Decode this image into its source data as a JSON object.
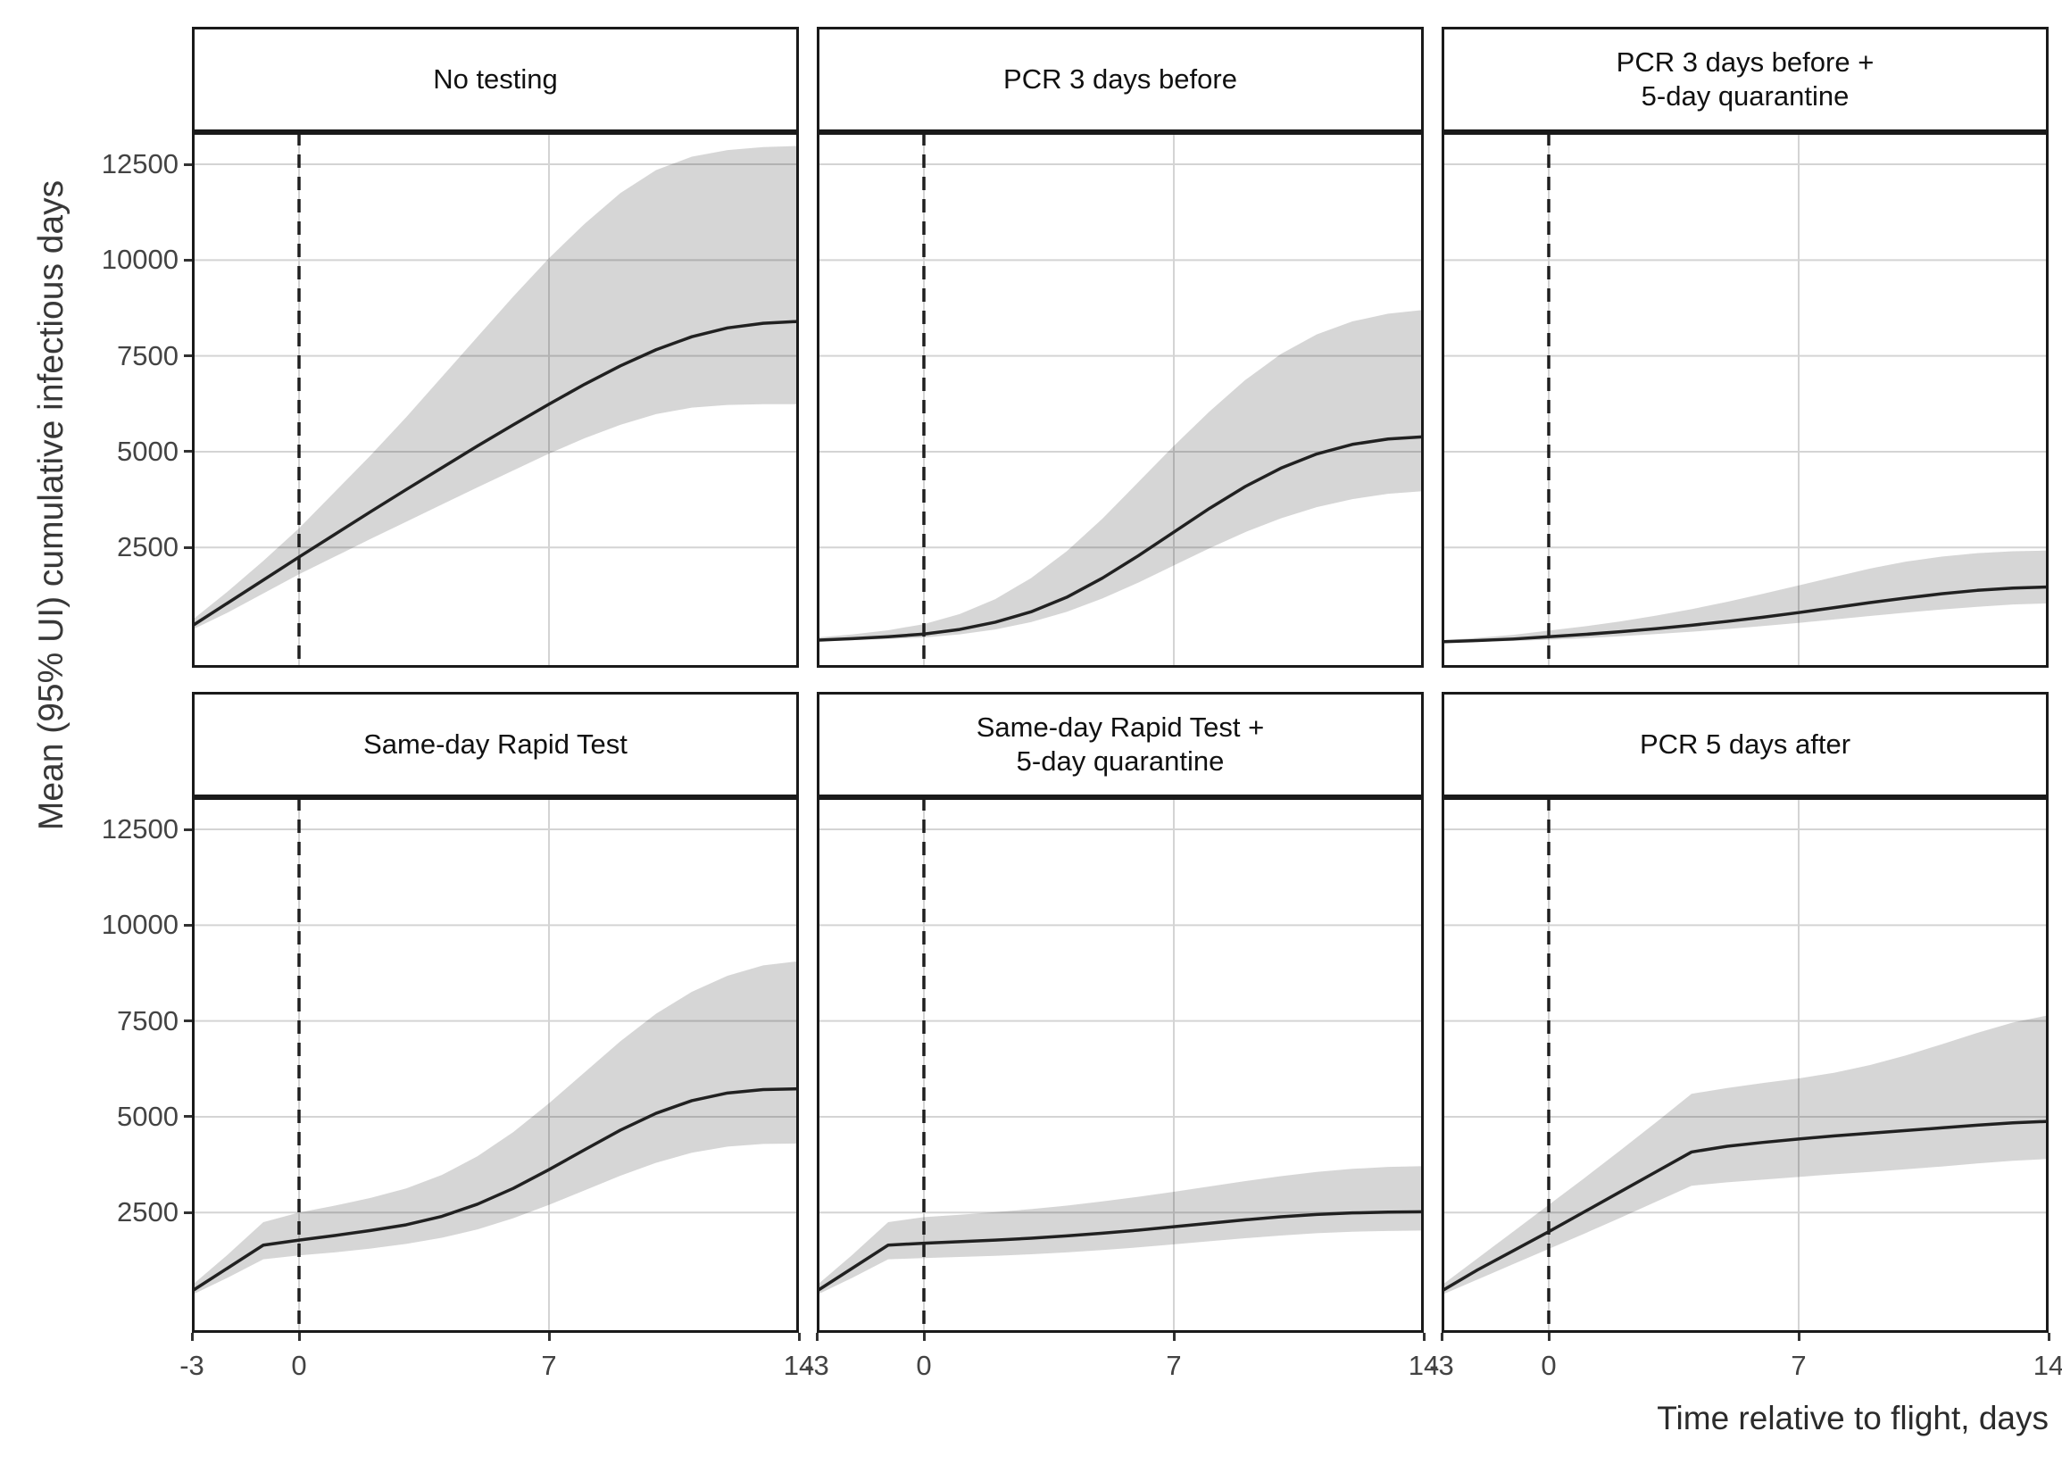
{
  "chart_data": {
    "type": "line",
    "description": "Faceted line chart with 95% uncertainty ribbons; one facet per testing/quarantine strategy",
    "ylabel": "Mean (95% UI) cumulative infectious days",
    "xlabel": "Time relative to flight, days",
    "x_ticks": [
      -3,
      0,
      7,
      14
    ],
    "y_ticks": [
      2500,
      5000,
      7500,
      10000,
      12500
    ],
    "xlim": [
      -3,
      14
    ],
    "ylim": [
      -640,
      13340
    ],
    "vline_x": 0,
    "grid": true,
    "legend": "none",
    "colors": {
      "panel_bg": "#ffffff",
      "grid": "#d4d4d4",
      "ribbon": "rgba(0,0,0,0.16)",
      "line": "#212121",
      "vline": "#1f1f1f",
      "border": "#1a1a1a"
    },
    "panels": [
      {
        "title": "No testing",
        "x": [
          -3,
          -2,
          -1,
          0,
          1,
          2,
          3,
          4,
          5,
          6,
          7,
          8,
          9,
          10,
          11,
          12,
          13,
          14
        ],
        "mean": [
          450,
          1050,
          1650,
          2250,
          2840,
          3430,
          4010,
          4580,
          5150,
          5700,
          6240,
          6760,
          7240,
          7660,
          8000,
          8230,
          8350,
          8400
        ],
        "lower": [
          350,
          800,
          1300,
          1800,
          2260,
          2720,
          3170,
          3620,
          4070,
          4510,
          4950,
          5350,
          5700,
          5980,
          6150,
          6220,
          6240,
          6240
        ],
        "upper": [
          600,
          1350,
          2150,
          3000,
          3950,
          4900,
          5900,
          6950,
          8000,
          9050,
          10050,
          10950,
          11750,
          12350,
          12700,
          12870,
          12950,
          12980
        ]
      },
      {
        "title": "PCR 3 days before",
        "x": [
          -3,
          -2,
          -1,
          0,
          1,
          2,
          3,
          4,
          5,
          6,
          7,
          8,
          9,
          10,
          11,
          12,
          13,
          14
        ],
        "mean": [
          80,
          120,
          170,
          240,
          360,
          550,
          820,
          1200,
          1700,
          2280,
          2900,
          3520,
          4090,
          4570,
          4940,
          5190,
          5330,
          5390
        ],
        "lower": [
          50,
          80,
          110,
          150,
          230,
          360,
          550,
          820,
          1170,
          1580,
          2030,
          2480,
          2900,
          3260,
          3550,
          3760,
          3900,
          3970
        ],
        "upper": [
          150,
          230,
          340,
          500,
          760,
          1150,
          1700,
          2400,
          3250,
          4200,
          5150,
          6050,
          6870,
          7550,
          8060,
          8400,
          8600,
          8700
        ]
      },
      {
        "title": "PCR 3 days before +\n5-day quarantine",
        "x": [
          -3,
          -2,
          -1,
          0,
          1,
          2,
          3,
          4,
          5,
          6,
          7,
          8,
          9,
          10,
          11,
          12,
          13,
          14
        ],
        "mean": [
          40,
          70,
          110,
          170,
          230,
          300,
          380,
          470,
          570,
          680,
          800,
          930,
          1060,
          1180,
          1290,
          1380,
          1440,
          1470
        ],
        "lower": [
          20,
          40,
          60,
          90,
          130,
          180,
          240,
          300,
          370,
          450,
          530,
          620,
          710,
          800,
          880,
          950,
          1010,
          1040
        ],
        "upper": [
          80,
          140,
          220,
          330,
          440,
          570,
          720,
          890,
          1080,
          1290,
          1510,
          1730,
          1950,
          2130,
          2260,
          2350,
          2400,
          2420
        ]
      },
      {
        "title": "Same-day Rapid Test",
        "x": [
          -3,
          -2,
          -1,
          0,
          1,
          2,
          3,
          4,
          5,
          6,
          7,
          8,
          9,
          10,
          11,
          12,
          13,
          14
        ],
        "mean": [
          450,
          1050,
          1650,
          1780,
          1900,
          2030,
          2180,
          2400,
          2720,
          3130,
          3620,
          4140,
          4650,
          5090,
          5420,
          5620,
          5710,
          5730
        ],
        "lower": [
          350,
          800,
          1280,
          1380,
          1460,
          1560,
          1680,
          1840,
          2060,
          2350,
          2700,
          3080,
          3460,
          3800,
          4060,
          4220,
          4290,
          4300
        ],
        "upper": [
          600,
          1400,
          2250,
          2500,
          2680,
          2880,
          3130,
          3480,
          3970,
          4600,
          5350,
          6160,
          6970,
          7690,
          8260,
          8680,
          8950,
          9060
        ]
      },
      {
        "title": "Same-day Rapid Test +\n5-day quarantine",
        "x": [
          -3,
          -2,
          -1,
          0,
          1,
          2,
          3,
          4,
          5,
          6,
          7,
          8,
          9,
          10,
          11,
          12,
          13,
          14
        ],
        "mean": [
          450,
          1050,
          1650,
          1700,
          1740,
          1780,
          1830,
          1890,
          1960,
          2040,
          2130,
          2220,
          2310,
          2390,
          2450,
          2490,
          2510,
          2520
        ],
        "lower": [
          350,
          800,
          1280,
          1310,
          1340,
          1370,
          1410,
          1460,
          1520,
          1590,
          1670,
          1750,
          1830,
          1900,
          1960,
          2000,
          2020,
          2030
        ],
        "upper": [
          600,
          1400,
          2250,
          2380,
          2440,
          2510,
          2590,
          2680,
          2790,
          2910,
          3040,
          3180,
          3320,
          3450,
          3560,
          3640,
          3690,
          3710
        ]
      },
      {
        "title": "PCR 5 days after",
        "x": [
          -3,
          -2,
          -1,
          0,
          1,
          2,
          3,
          4,
          5,
          6,
          7,
          8,
          9,
          10,
          11,
          12,
          13,
          14
        ],
        "mean": [
          450,
          1000,
          1500,
          2000,
          2520,
          3040,
          3560,
          4080,
          4230,
          4330,
          4420,
          4500,
          4570,
          4640,
          4710,
          4780,
          4840,
          4880
        ],
        "lower": [
          350,
          750,
          1150,
          1550,
          1950,
          2360,
          2780,
          3200,
          3290,
          3360,
          3430,
          3500,
          3560,
          3630,
          3700,
          3780,
          3850,
          3900
        ],
        "upper": [
          600,
          1300,
          2000,
          2700,
          3400,
          4120,
          4850,
          5600,
          5750,
          5880,
          6000,
          6150,
          6350,
          6600,
          6890,
          7190,
          7460,
          7650
        ]
      }
    ]
  }
}
